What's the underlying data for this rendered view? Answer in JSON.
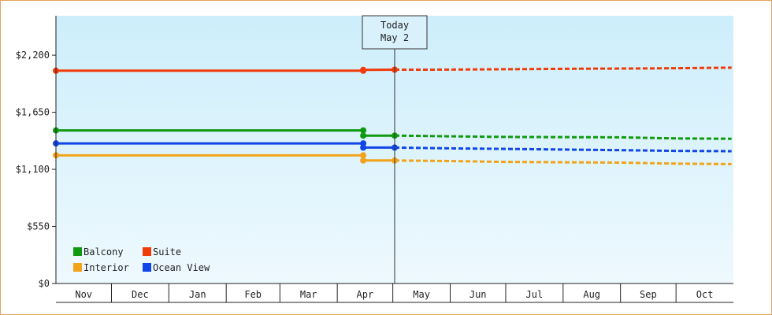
{
  "chart_data": {
    "type": "line",
    "title": "",
    "xlabel": "",
    "ylabel": "",
    "x_categories": [
      "Nov",
      "Dec",
      "Jan",
      "Feb",
      "Mar",
      "Apr",
      "May",
      "Jun",
      "Jul",
      "Aug",
      "Sep",
      "Oct"
    ],
    "y_ticks": [
      "$0",
      "$550",
      "$1,100",
      "$1,650",
      "$2,200"
    ],
    "y_tick_values": [
      0,
      550,
      1100,
      1650,
      2200
    ],
    "ylim": [
      0,
      2580
    ],
    "grid": false,
    "background": "light-blue gradient",
    "today_marker": {
      "line1": "Today",
      "line2": "May 2"
    },
    "legend": {
      "placement": "bottom-left",
      "entries": [
        {
          "name": "Balcony",
          "color": "#0f9a0f"
        },
        {
          "name": "Suite",
          "color": "#f03c0a"
        },
        {
          "name": "Interior",
          "color": "#f2a31a"
        },
        {
          "name": "Ocean View",
          "color": "#1046e8"
        }
      ]
    },
    "series": [
      {
        "name": "Suite",
        "color": "#f03c0a",
        "history": [
          [
            "2023-11-01",
            2050
          ],
          [
            "2024-04-15",
            2050
          ],
          [
            "2024-04-15",
            2058
          ],
          [
            "2024-05-02",
            2060
          ]
        ],
        "forecast": [
          [
            "2024-05-02",
            2060
          ],
          [
            "2024-05-20",
            2060
          ],
          [
            "2024-07-01",
            2065
          ],
          [
            "2024-08-15",
            2070
          ],
          [
            "2024-09-15",
            2072
          ],
          [
            "2024-10-01",
            2075
          ],
          [
            "2024-10-31",
            2080
          ]
        ]
      },
      {
        "name": "Balcony",
        "color": "#0f9a0f",
        "history": [
          [
            "2023-11-01",
            1475
          ],
          [
            "2024-04-15",
            1475
          ],
          [
            "2024-04-15",
            1425
          ],
          [
            "2024-05-02",
            1425
          ]
        ],
        "forecast": [
          [
            "2024-05-02",
            1425
          ],
          [
            "2024-06-01",
            1418
          ],
          [
            "2024-07-01",
            1412
          ],
          [
            "2024-09-01",
            1408
          ],
          [
            "2024-10-01",
            1398
          ],
          [
            "2024-10-31",
            1395
          ]
        ]
      },
      {
        "name": "Ocean View",
        "color": "#1046e8",
        "history": [
          [
            "2023-11-01",
            1350
          ],
          [
            "2024-04-15",
            1350
          ],
          [
            "2024-04-15",
            1310
          ],
          [
            "2024-05-02",
            1310
          ]
        ],
        "forecast": [
          [
            "2024-05-02",
            1310
          ],
          [
            "2024-06-01",
            1302
          ],
          [
            "2024-07-01",
            1297
          ],
          [
            "2024-09-01",
            1285
          ],
          [
            "2024-10-01",
            1278
          ],
          [
            "2024-10-31",
            1275
          ]
        ]
      },
      {
        "name": "Interior",
        "color": "#f2a31a",
        "history": [
          [
            "2023-11-01",
            1235
          ],
          [
            "2024-04-15",
            1235
          ],
          [
            "2024-04-15",
            1185
          ],
          [
            "2024-05-02",
            1185
          ]
        ],
        "forecast": [
          [
            "2024-05-02",
            1185
          ],
          [
            "2024-06-01",
            1180
          ],
          [
            "2024-07-01",
            1172
          ],
          [
            "2024-09-01",
            1165
          ],
          [
            "2024-10-01",
            1155
          ],
          [
            "2024-10-31",
            1150
          ]
        ]
      }
    ],
    "markers": [
      {
        "series": "Suite",
        "date": "2024-04-15",
        "value": 2050
      },
      {
        "series": "Suite",
        "date": "2024-04-15",
        "value": 2058
      },
      {
        "series": "Suite",
        "date": "2024-05-02",
        "value": 2060
      },
      {
        "series": "Balcony",
        "date": "2024-04-15",
        "value": 1475
      },
      {
        "series": "Balcony",
        "date": "2024-04-15",
        "value": 1425
      },
      {
        "series": "Balcony",
        "date": "2024-05-02",
        "value": 1425
      },
      {
        "series": "Ocean View",
        "date": "2024-04-15",
        "value": 1350
      },
      {
        "series": "Ocean View",
        "date": "2024-04-15",
        "value": 1310
      },
      {
        "series": "Ocean View",
        "date": "2024-05-02",
        "value": 1310
      },
      {
        "series": "Interior",
        "date": "2024-04-15",
        "value": 1235
      },
      {
        "series": "Interior",
        "date": "2024-04-15",
        "value": 1185
      },
      {
        "series": "Interior",
        "date": "2024-05-02",
        "value": 1185
      },
      {
        "series": "Suite",
        "date": "2023-11-01",
        "value": 2050
      },
      {
        "series": "Balcony",
        "date": "2023-11-01",
        "value": 1475
      },
      {
        "series": "Ocean View",
        "date": "2023-11-01",
        "value": 1350
      },
      {
        "series": "Interior",
        "date": "2023-11-01",
        "value": 1235
      }
    ]
  }
}
